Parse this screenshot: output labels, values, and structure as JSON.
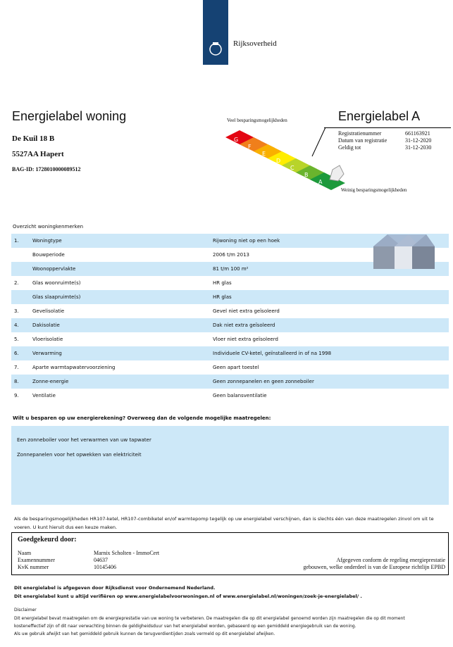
{
  "header": {
    "logo_text": "Rijksoverheid"
  },
  "title": "Energielabel woning",
  "address": {
    "street": "De Kuil 18 B",
    "postal_city": "5527AA Hapert",
    "bag_id": "BAG-ID: 1728010000089512"
  },
  "label": {
    "title": "Energielabel A",
    "class": "A",
    "scale": [
      "G",
      "F",
      "E",
      "D",
      "C",
      "B",
      "A"
    ],
    "scale_colors": [
      "#e30613",
      "#f07f1b",
      "#f9b000",
      "#ffed00",
      "#b8d42a",
      "#6ab42d",
      "#1d9a3c"
    ],
    "top_caption": "Veel besparingsmogelijkheden",
    "bottom_caption": "Weinig besparingsmogelijkheden",
    "registration": [
      {
        "k": "Registratienummer",
        "v": "661163921"
      },
      {
        "k": "Datum van registratie",
        "v": "31-12-2020"
      },
      {
        "k": "Geldig tot",
        "v": "31-12-2030"
      }
    ]
  },
  "overview": {
    "title": "Overzicht woningkenmerken",
    "rows": [
      {
        "n": "1.",
        "k": "Woningtype",
        "v": "Rijwoning niet op een hoek"
      },
      {
        "n": "",
        "k": "Bouwperiode",
        "v": "2006 t/m 2013"
      },
      {
        "n": "",
        "k": "Woonoppervlakte",
        "v": "81 t/m 100 m²"
      },
      {
        "n": "2.",
        "k": "Glas woonruimte(s)",
        "v": "HR glas"
      },
      {
        "n": "",
        "k": "Glas slaapruimte(s)",
        "v": "HR glas"
      },
      {
        "n": "3.",
        "k": "Gevelisolatie",
        "v": "Gevel niet extra geïsoleerd"
      },
      {
        "n": "4.",
        "k": "Dakisolatie",
        "v": "Dak niet extra geïsoleerd"
      },
      {
        "n": "5.",
        "k": "Vloerisolatie",
        "v": "Vloer niet extra geïsoleerd"
      },
      {
        "n": "6.",
        "k": "Verwarming",
        "v": "Individuele CV-ketel, geïnstalleerd in of na 1998"
      },
      {
        "n": "7.",
        "k": "Aparte warmtapwatervoorziening",
        "v": "Geen apart toestel"
      },
      {
        "n": "8.",
        "k": "Zonne-energie",
        "v": "Geen zonnepanelen en geen zonneboiler"
      },
      {
        "n": "9.",
        "k": "Ventilatie",
        "v": "Geen balansventilatie"
      }
    ]
  },
  "measures": {
    "question": "Wilt u besparen op uw energierekening? Overweeg dan de volgende mogelijke maatregelen:",
    "items": [
      "Een zonneboiler voor het verwarmen van uw tapwater",
      "Zonnepanelen voor het opwekken van elektriciteit"
    ]
  },
  "note": "Als de besparingsmogelijkheden HR107-ketel, HR107-combiketel en/of warmtepomp tegelijk op uw energielabel verschijnen, dan is slechts één van deze maatregelen zinvol om uit te voeren. U kunt hieruit dus een keuze maken.",
  "approved": {
    "title": "Goedgekeurd door:",
    "fields": [
      {
        "k": "Naam",
        "v": "Marnix Scholten - ImmoCert"
      },
      {
        "k": "Examennummer",
        "v": "04637"
      },
      {
        "k": "KvK nummer",
        "v": "10145406"
      }
    ],
    "conform_1": "Afgegeven conform de regeling energieprestatie",
    "conform_2": "gebouwen, welke onderdeel is van de Europese richtlijn EPBD"
  },
  "footer": {
    "line1": "Dit energielabel is afgegeven door Rijksdienst voor Ondernemend Nederland.",
    "line2": "Dit energielabel kunt u altijd verifiëren op www.energielabelvoorwoningen.nl of www.energielabel.nl/woningen/zoek-je-energielabel/ .",
    "disclaimer_title": "Disclaimer",
    "disclaimer": [
      "Dit energielabel bevat maatregelen om de energieprestatie van uw woning te verbeteren. De maatregelen die op dit energielabel genoemd worden zijn maatregelen die op dit moment",
      "kosteneffectief zijn of dit naar verwachting binnen de geldigheidsduur van het energielabel worden, gebaseerd op een gemiddeld energiegebruik van de woning.",
      "Als uw gebruik afwijkt van het gemiddeld gebruik kunnen de terugverdientijden zoals vermeld op dit energielabel afwijken."
    ]
  }
}
